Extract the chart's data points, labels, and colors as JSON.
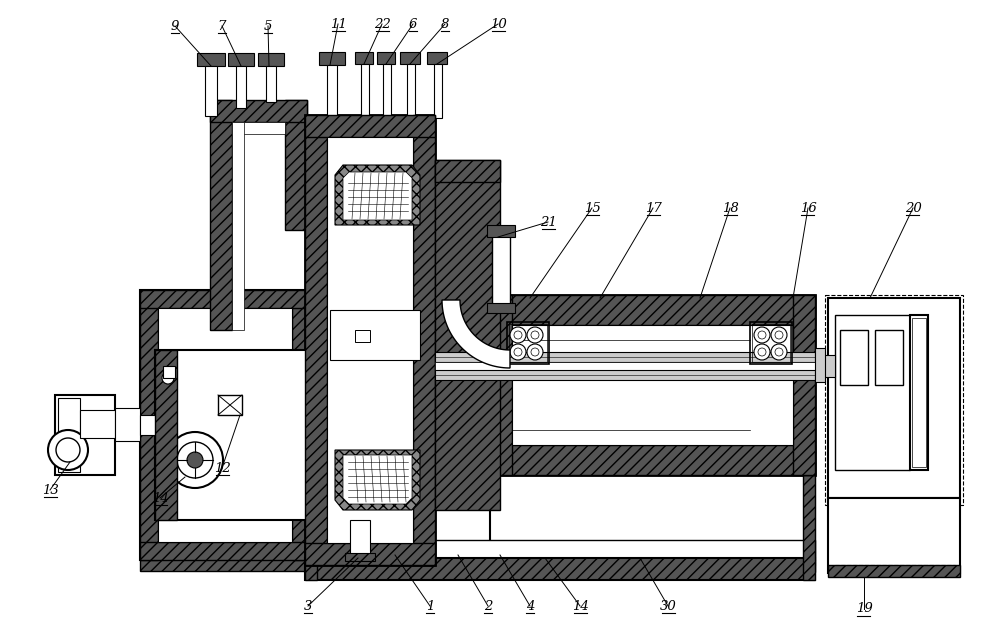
{
  "bg_color": "#ffffff",
  "figsize": [
    10.0,
    6.4
  ],
  "dpi": 100,
  "dark": "#555555",
  "mid": "#888888",
  "light": "#cccccc"
}
